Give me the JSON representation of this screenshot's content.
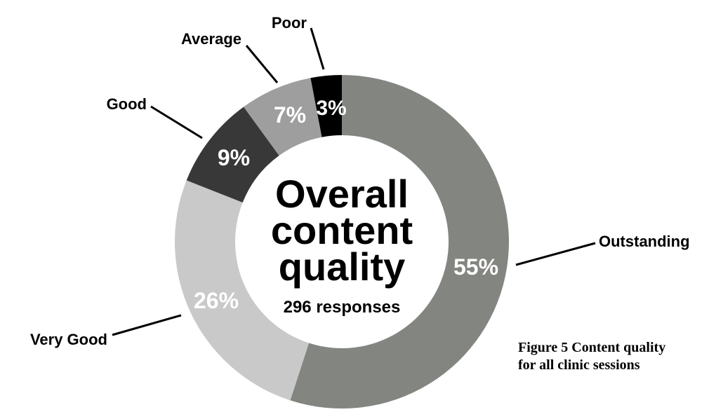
{
  "chart_data": {
    "type": "pie",
    "center_title_lines": [
      "Overall",
      "content",
      "quality"
    ],
    "center_subtitle": "296 responses",
    "slices": [
      {
        "label": "Outstanding",
        "value": 55,
        "value_label": "55%",
        "color": "#838680"
      },
      {
        "label": "Very Good",
        "value": 26,
        "value_label": "26%",
        "color": "#c9c9c9"
      },
      {
        "label": "Good",
        "value": 9,
        "value_label": "9%",
        "color": "#383838"
      },
      {
        "label": "Average",
        "value": 7,
        "value_label": "7%",
        "color": "#9e9e9e"
      },
      {
        "label": "Poor",
        "value": 3,
        "value_label": "3%",
        "color": "#000000"
      }
    ]
  },
  "caption": {
    "line1": "Figure 5 Content quality",
    "line2": "for all clinic sessions"
  }
}
